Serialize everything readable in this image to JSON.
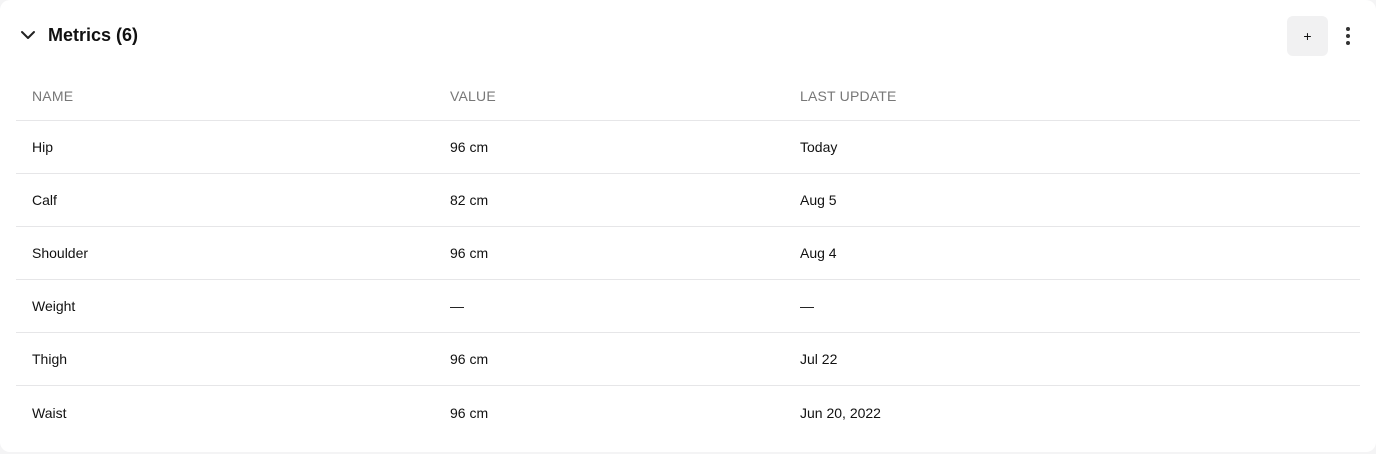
{
  "section": {
    "title": "Metrics (6)",
    "add_label": "+"
  },
  "icons": {
    "collapse": "chevron-down-icon",
    "more": "more-vertical-icon"
  },
  "table": {
    "columns": [
      "NAME",
      "VALUE",
      "LAST UPDATE"
    ],
    "rows": [
      {
        "name": "Hip",
        "value": "96 cm",
        "last_update": "Today"
      },
      {
        "name": "Calf",
        "value": "82 cm",
        "last_update": "Aug 5"
      },
      {
        "name": "Shoulder",
        "value": "96 cm",
        "last_update": "Aug 4"
      },
      {
        "name": "Weight",
        "value": "—",
        "last_update": "—"
      },
      {
        "name": "Thigh",
        "value": "96 cm",
        "last_update": "Jul 22"
      },
      {
        "name": "Waist",
        "value": "96 cm",
        "last_update": "Jun 20, 2022"
      }
    ]
  }
}
